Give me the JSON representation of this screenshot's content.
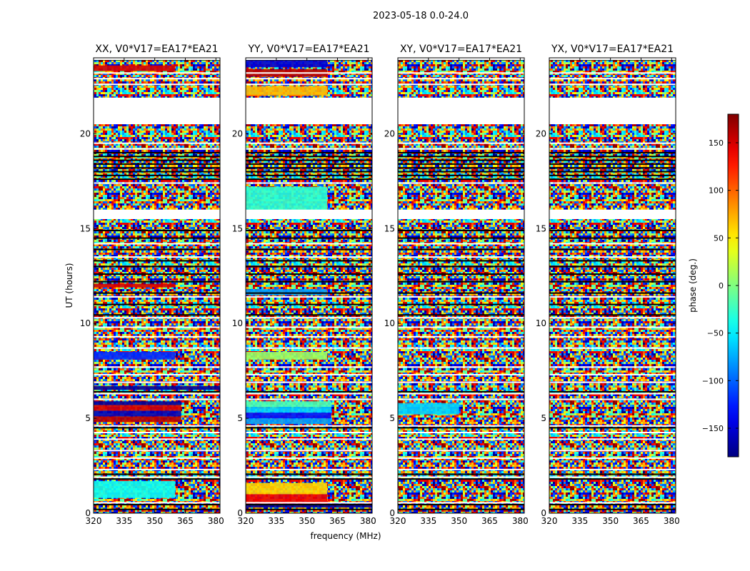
{
  "figure": {
    "suptitle": "2023-05-18 0.0-24.0",
    "xlabel": "frequency (MHz)",
    "ylabel": "UT (hours)"
  },
  "chart_data": {
    "type": "heatmap",
    "colormap": "jet",
    "xlim": [
      320,
      382
    ],
    "ylim": [
      0,
      24
    ],
    "x_ticks": [
      320,
      335,
      350,
      365,
      380
    ],
    "y_ticks": [
      0,
      5,
      10,
      15,
      20
    ],
    "colorbar": {
      "label": "phase (deg.)",
      "range": [
        -180,
        180
      ],
      "ticks": [
        -150,
        -100,
        -50,
        0,
        50,
        100,
        150
      ]
    },
    "data_gaps_ut": [
      [
        21.9,
        20.5
      ],
      [
        16.0,
        15.5
      ]
    ],
    "panels": [
      {
        "title": "XX, V0*V17=EA17*EA21",
        "features": [
          {
            "ut": [
              0.8,
              1.7
            ],
            "freq": [
              320,
              360
            ],
            "phase": -40
          },
          {
            "ut": [
              4.8,
              5.1
            ],
            "freq": [
              320,
              363
            ],
            "phase": 160
          },
          {
            "ut": [
              5.1,
              5.4
            ],
            "freq": [
              320,
              363
            ],
            "phase": -160
          },
          {
            "ut": [
              5.4,
              5.7
            ],
            "freq": [
              320,
              363
            ],
            "phase": 150
          },
          {
            "ut": [
              5.7,
              5.9
            ],
            "freq": [
              320,
              363
            ],
            "phase": -170
          },
          {
            "ut": [
              6.5,
              6.7
            ],
            "freq": [
              320,
              382
            ],
            "phase": -170
          },
          {
            "ut": [
              8.1,
              8.5
            ],
            "freq": [
              320,
              360
            ],
            "phase": -120
          },
          {
            "ut": [
              11.9,
              12.1
            ],
            "freq": [
              320,
              360
            ],
            "phase": 150
          },
          {
            "ut": [
              23.3,
              23.6
            ],
            "freq": [
              320,
              360
            ],
            "phase": 150
          }
        ]
      },
      {
        "title": "YY, V0*V17=EA17*EA21",
        "features": [
          {
            "ut": [
              0.3,
              0.5
            ],
            "freq": [
              320,
              382
            ],
            "phase": -170
          },
          {
            "ut": [
              0.5,
              1.0
            ],
            "freq": [
              320,
              360
            ],
            "phase": 140
          },
          {
            "ut": [
              1.0,
              1.6
            ],
            "freq": [
              320,
              360
            ],
            "phase": 60
          },
          {
            "ut": [
              4.7,
              5.0
            ],
            "freq": [
              320,
              362
            ],
            "phase": -80
          },
          {
            "ut": [
              5.0,
              5.3
            ],
            "freq": [
              320,
              362
            ],
            "phase": -130
          },
          {
            "ut": [
              5.3,
              5.6
            ],
            "freq": [
              320,
              362
            ],
            "phase": -60
          },
          {
            "ut": [
              5.6,
              5.9
            ],
            "freq": [
              320,
              362
            ],
            "phase": -20
          },
          {
            "ut": [
              8.1,
              8.5
            ],
            "freq": [
              320,
              360
            ],
            "phase": 10
          },
          {
            "ut": [
              11.5,
              11.8
            ],
            "freq": [
              320,
              360
            ],
            "phase": -80
          },
          {
            "ut": [
              15.5,
              17.2
            ],
            "freq": [
              320,
              360
            ],
            "phase": -30
          },
          {
            "ut": [
              22.0,
              22.5
            ],
            "freq": [
              320,
              360
            ],
            "phase": 70
          },
          {
            "ut": [
              23.0,
              23.4
            ],
            "freq": [
              320,
              360
            ],
            "phase": 160
          },
          {
            "ut": [
              23.5,
              23.9
            ],
            "freq": [
              320,
              360
            ],
            "phase": -150
          }
        ]
      },
      {
        "title": "XY, V0*V17=EA17*EA21",
        "features": [
          {
            "ut": [
              5.2,
              5.8
            ],
            "freq": [
              320,
              350
            ],
            "phase": -60
          }
        ]
      },
      {
        "title": "YX, V0*V17=EA17*EA21",
        "features": []
      }
    ]
  }
}
